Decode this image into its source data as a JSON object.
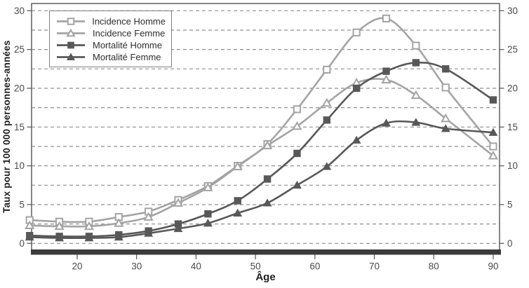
{
  "chart_data": {
    "type": "line",
    "title": "",
    "xlabel": "Âge",
    "ylabel": "Taux pour 100 000 personnes-années",
    "x": [
      12,
      17,
      22,
      27,
      32,
      37,
      42,
      47,
      52,
      57,
      62,
      67,
      72,
      77,
      82,
      90
    ],
    "xticks": [
      20,
      30,
      40,
      50,
      60,
      70,
      80,
      90
    ],
    "yticks": [
      0,
      5,
      10,
      15,
      20,
      25,
      30
    ],
    "ylim": [
      0,
      30
    ],
    "grid_step": 2.5,
    "grid": "horizontal-dashed",
    "legend_position": "top-left",
    "series": [
      {
        "name": "Incidence Homme",
        "marker": "open-square",
        "color": "#a4a4a4",
        "values": [
          3.0,
          2.8,
          2.8,
          3.4,
          4.1,
          5.6,
          7.4,
          10.0,
          12.8,
          17.3,
          22.4,
          27.2,
          29.0,
          25.5,
          20.1,
          12.5
        ]
      },
      {
        "name": "Incidence Femme",
        "marker": "open-triangle",
        "color": "#a4a4a4",
        "values": [
          2.3,
          2.2,
          2.2,
          2.6,
          3.4,
          5.2,
          7.2,
          9.9,
          12.6,
          15.1,
          18.1,
          20.7,
          21.1,
          19.1,
          16.1,
          11.3
        ]
      },
      {
        "name": "Mortalité Homme",
        "marker": "filled-square",
        "color": "#585858",
        "values": [
          1.0,
          0.9,
          0.9,
          1.1,
          1.6,
          2.5,
          3.8,
          5.5,
          8.3,
          11.6,
          15.9,
          20.0,
          22.2,
          23.3,
          22.5,
          18.5
        ]
      },
      {
        "name": "Mortalité Femme",
        "marker": "filled-triangle",
        "color": "#585858",
        "values": [
          0.8,
          0.7,
          0.7,
          0.8,
          1.3,
          1.9,
          2.6,
          3.9,
          5.2,
          7.5,
          9.9,
          13.3,
          15.5,
          15.6,
          14.8,
          14.3
        ]
      }
    ],
    "colors": {
      "incidence": "#a4a4a4",
      "mortality": "#585858",
      "gridline": "#8f8f8f",
      "frame": "#5f5f5f",
      "axis_bar": "#3b3b3b",
      "tick_text": "#4a4a4a",
      "title_text": "#1f1f1f"
    }
  }
}
